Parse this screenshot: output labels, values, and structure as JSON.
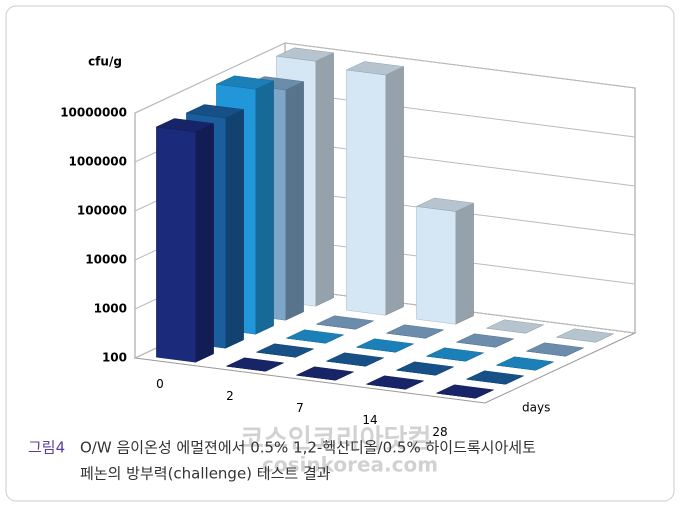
{
  "chart_data": {
    "type": "bar3d",
    "y_label": "cfu/g",
    "x_label": "days",
    "categories": [
      "0",
      "2",
      "7",
      "14",
      "28"
    ],
    "series": [
      {
        "color": "#1b2a7a",
        "values": [
          5000000,
          100,
          100,
          100,
          100
        ]
      },
      {
        "color": "#1a5e9e",
        "values": [
          5000000,
          100,
          100,
          100,
          100
        ]
      },
      {
        "color": "#2196d8",
        "values": [
          10000000,
          100,
          100,
          100,
          100
        ]
      },
      {
        "color": "#7ea6c9",
        "values": [
          5000000,
          100,
          100,
          100,
          100
        ]
      },
      {
        "color": "#d5e7f4",
        "values": [
          10000000,
          8000000,
          20000,
          100,
          100
        ]
      }
    ],
    "log_scale": true,
    "grid": true,
    "ylim": [
      100,
      10000000
    ],
    "yticks": [
      100,
      1000,
      10000,
      100000,
      1000000,
      10000000
    ]
  },
  "caption": {
    "label": "그림4",
    "line1": "O/W 음이온성 에멀젼에서 0.5% 1,2-헥산디올/0.5% 하이드록시아세토",
    "line2": "페논의 방부력(challenge) 테스트 결과"
  },
  "watermark": {
    "korean": "코스인코리아닷컴",
    "url": "cosinkorea.com"
  }
}
